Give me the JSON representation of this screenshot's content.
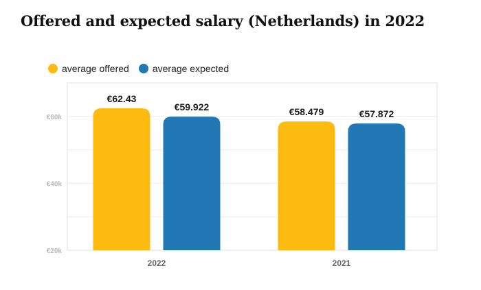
{
  "title": "Offered and expected salary (Netherlands) in 2022",
  "colors": {
    "offered": "#FDBB11",
    "expected": "#2278B5",
    "grid": "#ececec",
    "frame": "#e2e2e2"
  },
  "chart_data": {
    "type": "bar",
    "title": "Offered and expected salary (Netherlands) in 2022",
    "categories": [
      "2022",
      "2021"
    ],
    "series": [
      {
        "name": "average offered",
        "values": [
          62.43,
          58.479
        ],
        "labels": [
          "€62.43",
          "€58.479"
        ]
      },
      {
        "name": "average expected",
        "values": [
          59.922,
          57.872
        ],
        "labels": [
          "€59.922",
          "€57.872"
        ]
      }
    ],
    "yticks": [
      {
        "value": 20,
        "label": "€20k"
      },
      {
        "value": 40,
        "label": "€40k"
      },
      {
        "value": 60,
        "label": "€60k"
      }
    ],
    "ylim": [
      20,
      70
    ],
    "grid": true,
    "legend": "top-left",
    "xlabel": "",
    "ylabel": ""
  }
}
